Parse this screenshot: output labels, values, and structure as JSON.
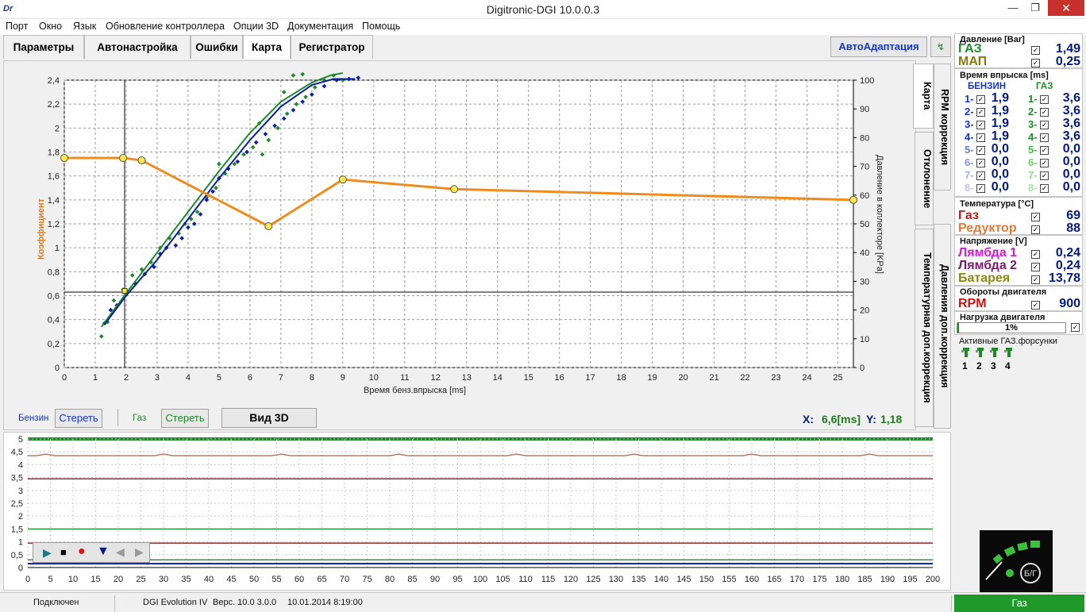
{
  "window": {
    "title": "Digitronic-DGI  10.0.0.3",
    "logo": "Dr"
  },
  "menu": [
    "Порт",
    "Окно",
    "Язык",
    "Обновление контроллера",
    "Опции 3D",
    "Документация",
    "Помощь"
  ],
  "tabs": [
    "Параметры",
    "Автонастройка",
    "Ошибки",
    "Карта",
    "Регистратор"
  ],
  "active_tab": "Карта",
  "autoadapt_label": "АвтоАдаптация",
  "vertical_tabs": [
    "Карта",
    "RPM коррекция",
    "Отклонение",
    "Давления доп.коррекция",
    "Температурная доп.коррекция"
  ],
  "chart_data": {
    "type": "scatter",
    "xlabel": "Время бенз.впрыска [ms]",
    "ylabel": "Коэффициент",
    "y2label": "Давление в коллекторе [KPa]",
    "xlim": [
      0,
      25.5
    ],
    "ylim": [
      0,
      2.4
    ],
    "y2lim": [
      0,
      100
    ],
    "x_ticks": [
      0,
      1,
      2,
      3,
      4,
      5,
      6,
      7,
      8,
      9,
      10,
      11,
      12,
      13,
      14,
      15,
      16,
      17,
      18,
      19,
      20,
      21,
      22,
      23,
      24,
      25
    ],
    "y_ticks": [
      "0",
      "0,2",
      "0,4",
      "0,6",
      "0,8",
      "1",
      "1,2",
      "1,4",
      "1,6",
      "1,8",
      "2",
      "2,2",
      "2,4"
    ],
    "y2_ticks": [
      0,
      10,
      20,
      30,
      40,
      50,
      60,
      70,
      80,
      90,
      100
    ],
    "correction_curve": {
      "color": "#f08c1e",
      "x": [
        0,
        1.9,
        2.5,
        6.6,
        9,
        12.6,
        25.5
      ],
      "y": [
        1.75,
        1.75,
        1.73,
        1.18,
        1.57,
        1.49,
        1.4
      ]
    },
    "petrol_fit": {
      "color": "#0a1fa0",
      "x": [
        1.3,
        2,
        3,
        4,
        5,
        6,
        7,
        8,
        8.7,
        9.4
      ],
      "y": [
        0.36,
        0.6,
        0.9,
        1.24,
        1.58,
        1.9,
        2.18,
        2.36,
        2.41,
        2.41
      ]
    },
    "gas_fit": {
      "color": "#1f8a2a",
      "x": [
        1.2,
        2,
        3,
        4,
        5,
        6,
        7,
        8,
        8.6,
        9
      ],
      "y": [
        0.34,
        0.62,
        0.96,
        1.3,
        1.64,
        1.96,
        2.22,
        2.38,
        2.44,
        2.46
      ]
    },
    "petrol_points": [
      [
        1.3,
        0.37
      ],
      [
        1.5,
        0.48
      ],
      [
        1.7,
        0.52
      ],
      [
        2,
        0.63
      ],
      [
        2.3,
        0.7
      ],
      [
        2.6,
        0.78
      ],
      [
        2.9,
        0.84
      ],
      [
        3.1,
        0.95
      ],
      [
        3.3,
        1.0
      ],
      [
        3.6,
        1.02
      ],
      [
        3.8,
        1.08
      ],
      [
        4.0,
        1.17
      ],
      [
        4.2,
        1.2
      ],
      [
        4.4,
        1.28
      ],
      [
        4.6,
        1.4
      ],
      [
        4.8,
        1.47
      ],
      [
        5.0,
        1.58
      ],
      [
        5.3,
        1.66
      ],
      [
        5.6,
        1.72
      ],
      [
        5.9,
        1.8
      ],
      [
        6.2,
        1.88
      ],
      [
        6.5,
        1.95
      ],
      [
        6.8,
        2.02
      ],
      [
        7.1,
        2.08
      ],
      [
        7.4,
        2.15
      ],
      [
        7.7,
        2.22
      ],
      [
        8.0,
        2.28
      ],
      [
        8.4,
        2.35
      ],
      [
        8.8,
        2.4
      ],
      [
        9.2,
        2.41
      ],
      [
        9.5,
        2.42
      ]
    ],
    "gas_points": [
      [
        1.2,
        0.26
      ],
      [
        1.4,
        0.38
      ],
      [
        1.6,
        0.56
      ],
      [
        1.9,
        0.65
      ],
      [
        2.2,
        0.77
      ],
      [
        2.5,
        0.82
      ],
      [
        2.8,
        0.88
      ],
      [
        3.1,
        1.0
      ],
      [
        3.4,
        1.08
      ],
      [
        3.7,
        1.12
      ],
      [
        3.9,
        1.2
      ],
      [
        4.1,
        1.24
      ],
      [
        4.3,
        1.3
      ],
      [
        4.6,
        1.42
      ],
      [
        4.9,
        1.5
      ],
      [
        5.2,
        1.62
      ],
      [
        5.5,
        1.7
      ],
      [
        5.8,
        1.78
      ],
      [
        6.1,
        1.84
      ],
      [
        6.3,
        2.04
      ],
      [
        6.6,
        1.9
      ],
      [
        6.9,
        2.0
      ],
      [
        7.2,
        2.12
      ],
      [
        7.5,
        2.2
      ],
      [
        7.8,
        2.26
      ],
      [
        8.1,
        2.34
      ],
      [
        8.4,
        2.4
      ],
      [
        8.7,
        2.44
      ],
      [
        9.0,
        2.4
      ],
      [
        7.1,
        2.3
      ],
      [
        7.4,
        2.44
      ],
      [
        7.7,
        2.45
      ],
      [
        6.4,
        1.78
      ],
      [
        5.0,
        1.7
      ]
    ],
    "cursor": {
      "x": 1.95,
      "y": 0.63
    },
    "marker": {
      "x": 1.95,
      "y": 0.64
    }
  },
  "readout": {
    "x_label": "X:",
    "x_value": "6,6[ms]",
    "y_label": "Y:",
    "y_value": "1,18"
  },
  "bottom_controls": {
    "petrol_label": "Бензин",
    "petrol_clear": "Стереть",
    "gas_label": "Газ",
    "gas_clear": "Стереть",
    "view3d": "Вид 3D"
  },
  "recorder": {
    "y_ticks": [
      "5",
      "4,5",
      "4",
      "3,5",
      "3",
      "2,5",
      "2",
      "1,5",
      "1",
      "0,5",
      "0"
    ],
    "x_ticks": [
      0,
      5,
      10,
      15,
      20,
      25,
      30,
      35,
      40,
      45,
      50,
      55,
      60,
      65,
      70,
      75,
      80,
      85,
      90,
      95,
      100,
      105,
      110,
      115,
      120,
      125,
      130,
      135,
      140,
      145,
      150,
      155,
      160,
      165,
      170,
      175,
      180,
      185,
      190,
      195,
      200
    ],
    "traces": [
      {
        "color": "#b07060",
        "level": 4.35
      },
      {
        "color": "#8a1a1a",
        "level": 3.45
      },
      {
        "color": "#1f8a2a",
        "level": 1.5
      },
      {
        "color": "#8a1a1a",
        "level": 0.95
      },
      {
        "color": "#1f8a2a",
        "level": 0.3
      },
      {
        "color": "#0a1fa0",
        "level": 0.15
      }
    ]
  },
  "pressure": {
    "title": "Давление [Bar]",
    "gas_label": "ГАЗ",
    "gas_value": "1,49",
    "map_label": "МАП",
    "map_value": "0,25"
  },
  "injection": {
    "title": "Время впрыска [ms]",
    "petrol_header": "БЕНЗИН",
    "gas_header": "ГАЗ",
    "rows": [
      {
        "n": "1-",
        "petrol": "1,9",
        "gas": "3,6"
      },
      {
        "n": "2-",
        "petrol": "1,9",
        "gas": "3,6"
      },
      {
        "n": "3-",
        "petrol": "1,9",
        "gas": "3,6"
      },
      {
        "n": "4-",
        "petrol": "1,9",
        "gas": "3,6"
      },
      {
        "n": "5-",
        "petrol": "0,0",
        "gas": "0,0"
      },
      {
        "n": "6-",
        "petrol": "0,0",
        "gas": "0,0"
      },
      {
        "n": "7-",
        "petrol": "0,0",
        "gas": "0,0"
      },
      {
        "n": "8-",
        "petrol": "0,0",
        "gas": "0,0"
      }
    ]
  },
  "temperature": {
    "title": "Температура  [°C]",
    "gas_label": "Газ",
    "gas_value": "69",
    "reducer_label": "Редуктор",
    "reducer_value": "88"
  },
  "voltage": {
    "title": "Напряжение [V]",
    "lambda1_label": "Лямбда 1",
    "lambda1_value": "0,24",
    "lambda2_label": "Лямбда 2",
    "lambda2_value": "0,24",
    "battery_label": "Батарея",
    "battery_value": "13,78"
  },
  "rpm": {
    "title": "Обороты двигателя",
    "label": "RPM",
    "value": "900"
  },
  "load": {
    "title": "Нагрузка двигателя",
    "value": "1%"
  },
  "injectors": {
    "title": "Активные ГАЗ.форсунки",
    "items": [
      "1",
      "2",
      "3",
      "4"
    ]
  },
  "switch_label": "Б/Г",
  "status": {
    "connection": "Подключен",
    "device": "DGI Evolution IV",
    "version": "Верс. 10.0  3.0.0",
    "date": "10.01.2014 8:19:00",
    "mode": "Газ"
  }
}
